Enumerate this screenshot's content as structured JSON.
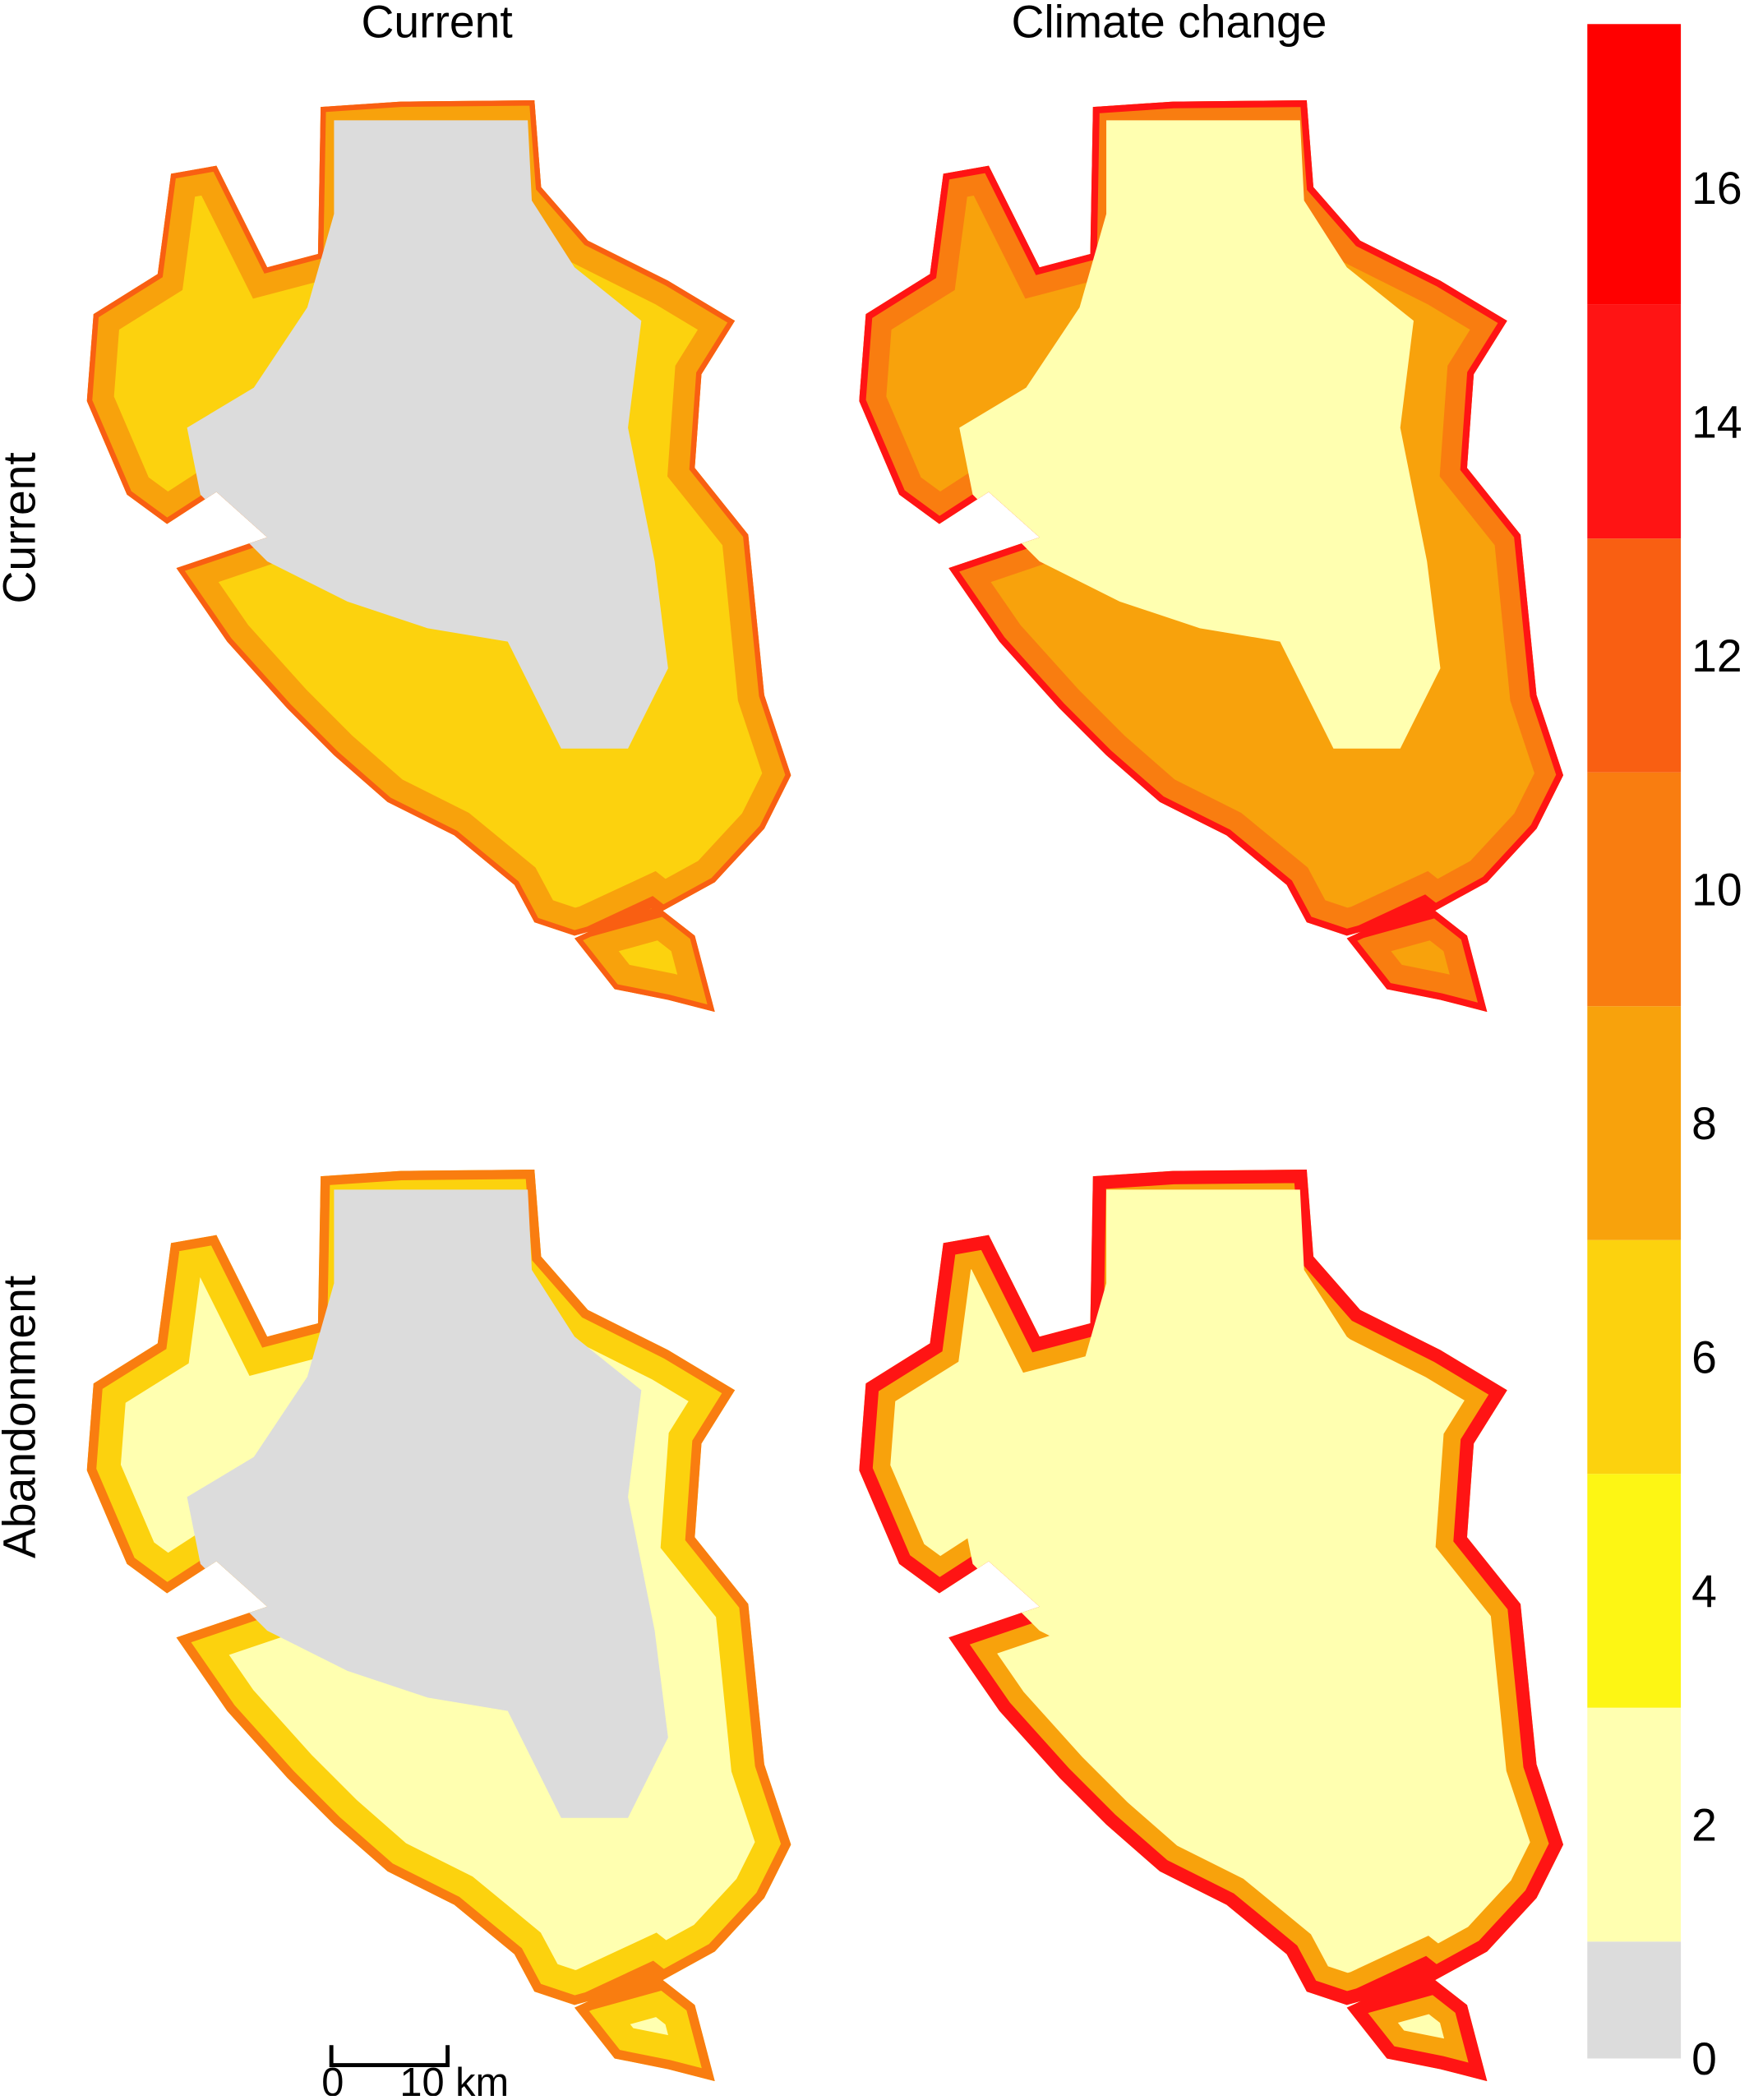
{
  "columns": [
    "Current",
    "Climate change"
  ],
  "rows": [
    "Current",
    "Abandonment"
  ],
  "scale_bar": {
    "labels": [
      "0",
      "10 km"
    ]
  },
  "legend": {
    "breaks": [
      0,
      1,
      3,
      5,
      7,
      9,
      11,
      13,
      15,
      17.4
    ],
    "colors": [
      "#dcdcdc",
      "#ffffb0",
      "#fdf614",
      "#fcd20e",
      "#f8a20c",
      "#f97d10",
      "#f95f12",
      "#ff1414",
      "#ff0000"
    ],
    "lim": [
      0,
      17.4
    ],
    "ticks": [
      0,
      2,
      4,
      6,
      8,
      10,
      12,
      14,
      16
    ]
  }
}
